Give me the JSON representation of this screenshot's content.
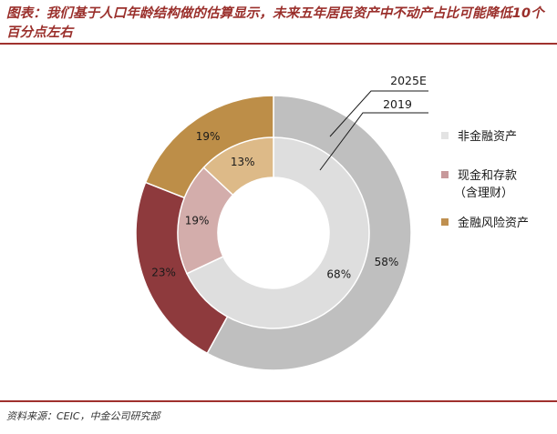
{
  "title": "图表：我们基于人口年龄结构做的估算显示，未来五年居民资产中不动产占比可能降低10个百分点左右",
  "source": "资料来源：CEIC，中金公司研究部",
  "chart_data": {
    "type": "pie",
    "subtype": "nested-donut",
    "categories": [
      "非金融资产",
      "现金和存款（含理财）",
      "金融风险资产"
    ],
    "series": [
      {
        "name": "2025E",
        "ring": "outer",
        "values": [
          58,
          23,
          19
        ]
      },
      {
        "name": "2019",
        "ring": "inner",
        "values": [
          68,
          19,
          13
        ]
      }
    ],
    "colors": {
      "2025E": [
        "#bfbfbf",
        "#8e3a3d",
        "#bd8e48"
      ],
      "2019": [
        "#dedede",
        "#d3adab",
        "#ddba88"
      ]
    },
    "legend_colors": [
      "#e3e3e3",
      "#c7999b",
      "#bf9050"
    ],
    "legend": {
      "position": "right",
      "items": [
        {
          "label": "非金融资产"
        },
        {
          "label_lines": [
            "现金和存款",
            "（含理财）"
          ]
        },
        {
          "label": "金融风险资产"
        }
      ]
    },
    "unit": "%"
  }
}
